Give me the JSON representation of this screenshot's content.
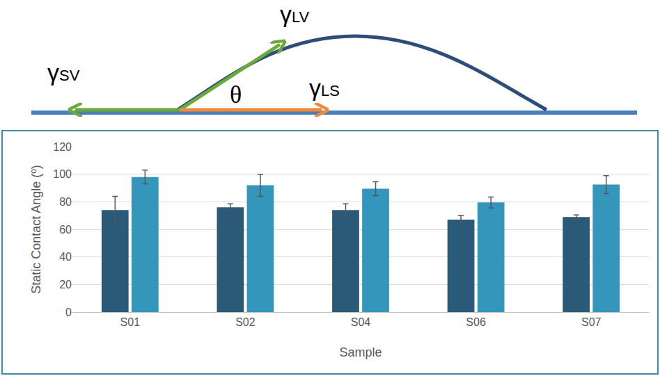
{
  "diagram": {
    "labels": {
      "sv": "γSV",
      "lv": "γLV",
      "ls": "γLS",
      "angle": "θ"
    }
  },
  "chart_data": {
    "type": "bar",
    "xlabel": "Sample",
    "ylabel": "Static Contact Angle (º)",
    "categories": [
      "S01",
      "S02",
      "S04",
      "S06",
      "S07"
    ],
    "series": [
      {
        "color": "#2a5a78",
        "values": [
          74,
          76,
          74,
          67,
          69
        ],
        "errors": [
          10,
          2.5,
          4.5,
          3,
          1.5
        ]
      },
      {
        "color": "#3596bc",
        "values": [
          98,
          92,
          89.5,
          79.5,
          92.5
        ],
        "errors": [
          5,
          8,
          5,
          4,
          6.5
        ]
      }
    ],
    "ylim": [
      0,
      120
    ],
    "yticks": [
      0,
      20,
      40,
      60,
      80,
      100,
      120
    ],
    "grid": true
  }
}
